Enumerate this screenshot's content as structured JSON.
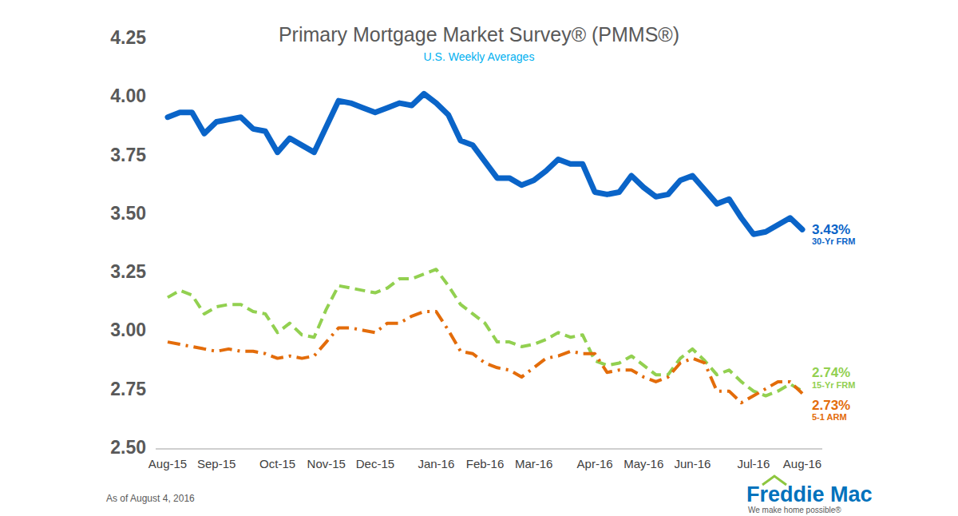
{
  "chart_data": {
    "type": "line",
    "title": "Primary Mortgage Market Survey® (PMMS®)",
    "subtitle": "U.S. Weekly Averages",
    "note": "As of August 4, 2016",
    "logo": "Freddie Mac",
    "tagline": "We make home possible®",
    "categories": [
      "Aug-15",
      null,
      null,
      null,
      "Sep-15",
      null,
      null,
      null,
      null,
      "Oct-15",
      null,
      null,
      null,
      "Nov-15",
      null,
      null,
      null,
      "Dec-15",
      null,
      null,
      null,
      null,
      "Jan-16",
      null,
      null,
      null,
      "Feb-16",
      null,
      null,
      null,
      "Mar-16",
      null,
      null,
      null,
      null,
      "Apr-16",
      null,
      null,
      null,
      "May-16",
      null,
      null,
      null,
      "Jun-16",
      null,
      null,
      null,
      null,
      "Jul-16",
      null,
      null,
      null,
      "Aug-16"
    ],
    "ylim": [
      2.5,
      4.25
    ],
    "yticks": [
      4.25,
      {
        "value": 4,
        "label": "4.00"
      },
      3.75,
      {
        "value": 3.5,
        "label": "3.50"
      },
      3.25,
      {
        "value": 3,
        "label": "3.00"
      },
      2.75,
      {
        "value": 2.5,
        "label": "2.50"
      }
    ],
    "grid": false,
    "series": [
      {
        "name": "30-Yr FRM",
        "color": "#0a64c8",
        "line_style": "solid",
        "values": [
          3.91,
          3.93,
          3.93,
          3.84,
          3.89,
          3.9,
          3.91,
          3.86,
          3.85,
          3.76,
          3.82,
          3.79,
          3.76,
          3.87,
          3.98,
          3.97,
          3.95,
          3.93,
          3.95,
          3.97,
          3.96,
          4.01,
          3.97,
          3.92,
          3.81,
          3.79,
          3.72,
          3.65,
          3.65,
          3.62,
          3.64,
          3.68,
          3.73,
          3.71,
          3.71,
          3.59,
          3.58,
          3.59,
          3.66,
          3.61,
          3.57,
          3.58,
          3.64,
          3.66,
          3.6,
          3.54,
          3.56,
          3.48,
          3.41,
          3.42,
          3.45,
          3.48,
          3.43
        ],
        "value_labels": [
          null,
          null,
          null,
          null,
          null,
          null,
          null,
          null,
          null,
          null,
          null,
          null,
          null,
          null,
          null,
          null,
          null,
          null,
          null,
          null,
          null,
          null,
          null,
          null,
          null,
          null,
          null,
          null,
          null,
          null,
          null,
          null,
          null,
          null,
          null,
          null,
          null,
          null,
          null,
          null,
          null,
          null,
          null,
          null,
          null,
          null,
          null,
          null,
          null,
          null,
          null,
          null,
          "3.43%"
        ]
      },
      {
        "name": "15-Yr FRM",
        "color": "#92d050",
        "line_style": "dashed",
        "values": [
          3.14,
          3.17,
          3.15,
          3.07,
          3.1,
          3.11,
          3.11,
          3.08,
          3.07,
          2.99,
          3.03,
          2.98,
          2.97,
          3.09,
          3.19,
          3.18,
          3.17,
          3.16,
          3.18,
          3.22,
          3.22,
          3.24,
          3.26,
          3.19,
          3.11,
          3.07,
          3.03,
          2.95,
          2.95,
          2.93,
          2.94,
          2.96,
          2.99,
          2.97,
          2.98,
          2.87,
          2.85,
          2.86,
          2.89,
          2.85,
          2.81,
          2.81,
          2.88,
          2.92,
          2.87,
          2.81,
          2.83,
          2.78,
          2.74,
          2.72,
          2.74,
          2.77,
          2.74
        ],
        "value_labels": [
          null,
          null,
          null,
          null,
          null,
          null,
          null,
          null,
          null,
          null,
          null,
          null,
          null,
          null,
          null,
          null,
          null,
          null,
          null,
          null,
          null,
          null,
          null,
          null,
          null,
          null,
          null,
          null,
          null,
          null,
          null,
          null,
          null,
          null,
          null,
          null,
          null,
          null,
          null,
          null,
          null,
          null,
          null,
          null,
          null,
          null,
          null,
          null,
          null,
          null,
          null,
          null,
          "2.74%"
        ]
      },
      {
        "name": "5-1 ARM",
        "color": "#e36c0a",
        "line_style": "dashdot",
        "values": [
          2.95,
          2.94,
          2.93,
          2.92,
          2.91,
          2.92,
          2.91,
          2.91,
          2.9,
          2.88,
          2.89,
          2.88,
          2.89,
          2.95,
          3.01,
          3.01,
          3.0,
          2.99,
          3.03,
          3.03,
          3.06,
          3.08,
          3.08,
          3.0,
          2.91,
          2.9,
          2.86,
          2.84,
          2.83,
          2.8,
          2.84,
          2.88,
          2.89,
          2.91,
          2.9,
          2.9,
          2.82,
          2.83,
          2.83,
          2.8,
          2.78,
          2.8,
          2.86,
          2.88,
          2.86,
          2.74,
          2.74,
          2.69,
          2.72,
          2.75,
          2.78,
          2.78,
          2.73
        ],
        "value_labels": [
          null,
          null,
          null,
          null,
          null,
          null,
          null,
          null,
          null,
          null,
          null,
          null,
          null,
          null,
          null,
          null,
          null,
          null,
          null,
          null,
          null,
          null,
          null,
          null,
          null,
          null,
          null,
          null,
          null,
          null,
          null,
          null,
          null,
          null,
          null,
          null,
          null,
          null,
          null,
          null,
          null,
          null,
          null,
          null,
          null,
          null,
          null,
          null,
          null,
          null,
          null,
          null,
          "2.73%"
        ]
      }
    ]
  }
}
